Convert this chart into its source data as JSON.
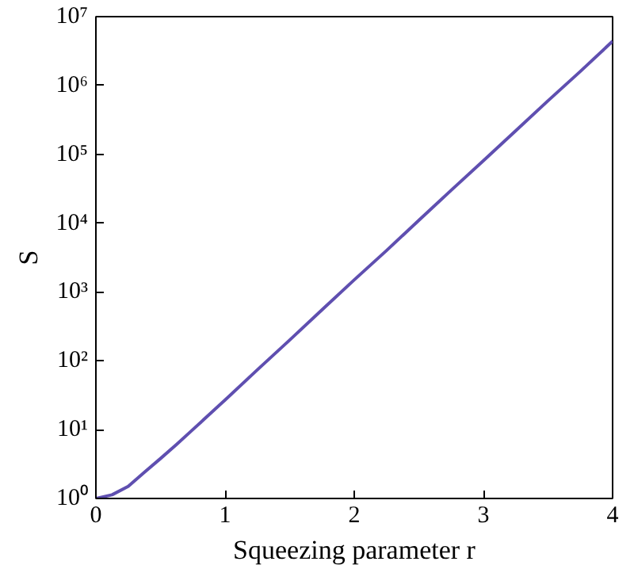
{
  "chart_data": {
    "type": "line",
    "xlabel": "Squeezing parameter r",
    "ylabel": "S",
    "x": [
      0,
      0.125,
      0.25,
      0.375,
      0.5,
      0.625,
      0.75,
      1,
      1.25,
      1.5,
      1.75,
      2,
      2.25,
      2.5,
      2.75,
      3,
      3.25,
      3.5,
      3.75,
      4
    ],
    "series": [
      {
        "color": "#5f4fb0",
        "values": [
          1,
          1.13,
          1.5,
          2.4,
          3.8,
          6.1,
          10,
          27,
          74,
          200,
          550,
          1500,
          4000,
          11000,
          30000,
          81000,
          220000,
          600000,
          1600000,
          4400000
        ]
      }
    ],
    "xlim": [
      0,
      4
    ],
    "ylim": [
      1,
      10000000
    ],
    "log": "y",
    "xticks": [
      0,
      1,
      2,
      3,
      4
    ],
    "yticks": [
      {
        "value": 1,
        "label": "10⁰"
      },
      {
        "value": 10,
        "label": "10¹"
      },
      {
        "value": 100,
        "label": "10²"
      },
      {
        "value": 1000,
        "label": "10³"
      },
      {
        "value": 10000,
        "label": "10⁴"
      },
      {
        "value": 100000,
        "label": "10⁵"
      },
      {
        "value": 1000000,
        "label": "10⁶"
      },
      {
        "value": 10000000,
        "label": "10⁷"
      }
    ],
    "grid": false
  }
}
